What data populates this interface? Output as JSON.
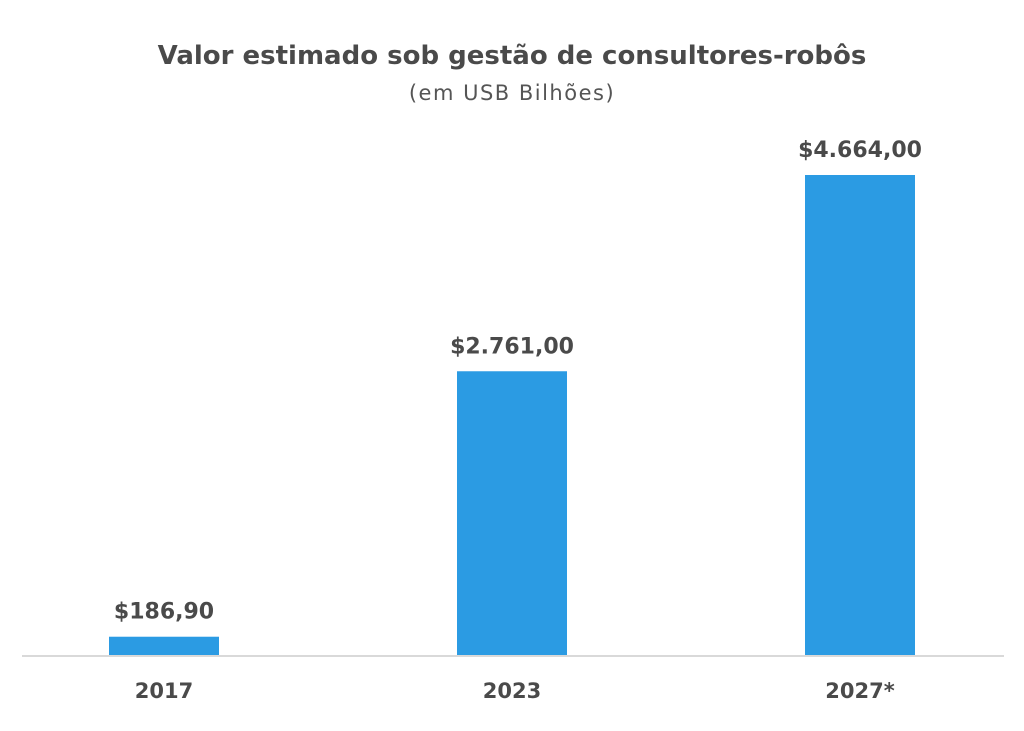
{
  "chart_data": {
    "type": "bar",
    "title": "Valor estimado sob gestão de consultores-robôs",
    "subtitle": "(em USB Bilhões)",
    "categories": [
      "2017",
      "2023",
      "2027*"
    ],
    "values": [
      186.9,
      2761.0,
      4664.0
    ],
    "value_labels": [
      "$186,90",
      "$2.761,00",
      "$4.664,00"
    ],
    "xlabel": "",
    "ylabel": "",
    "ylim": [
      0,
      5000
    ],
    "grid": false,
    "legend": "none",
    "colors": {
      "bar": "#2b9be3",
      "baseline": "#d9d9d9",
      "text": "#4a4a4a"
    }
  }
}
